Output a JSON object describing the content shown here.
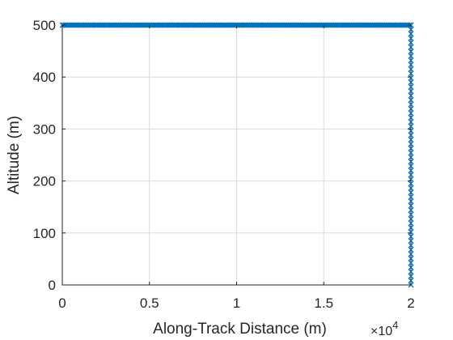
{
  "chart_data": {
    "type": "scatter",
    "title": "",
    "xlabel": "Along-Track Distance (m)",
    "ylabel": "Altitude (m)",
    "xlim": [
      0,
      20000
    ],
    "ylim": [
      0,
      500
    ],
    "x_tick_values": [
      0,
      5000,
      10000,
      15000,
      20000
    ],
    "x_tick_labels": [
      "0",
      "0.5",
      "1",
      "1.5",
      "2"
    ],
    "x_multiplier": {
      "base": "×10",
      "exponent": "4"
    },
    "y_tick_values": [
      0,
      100,
      200,
      300,
      400,
      500
    ],
    "y_tick_labels": [
      "0",
      "100",
      "200",
      "300",
      "400",
      "500"
    ],
    "grid": true,
    "marker": "x",
    "series": [
      {
        "color": "#0072BD",
        "segments": [
          {
            "from": {
              "x": 0,
              "y": 500
            },
            "to": {
              "x": 20000,
              "y": 500
            },
            "point_count": 200
          },
          {
            "from": {
              "x": 20000,
              "y": 500
            },
            "to": {
              "x": 20000,
              "y": 0
            },
            "point_count": 60
          }
        ]
      }
    ]
  }
}
